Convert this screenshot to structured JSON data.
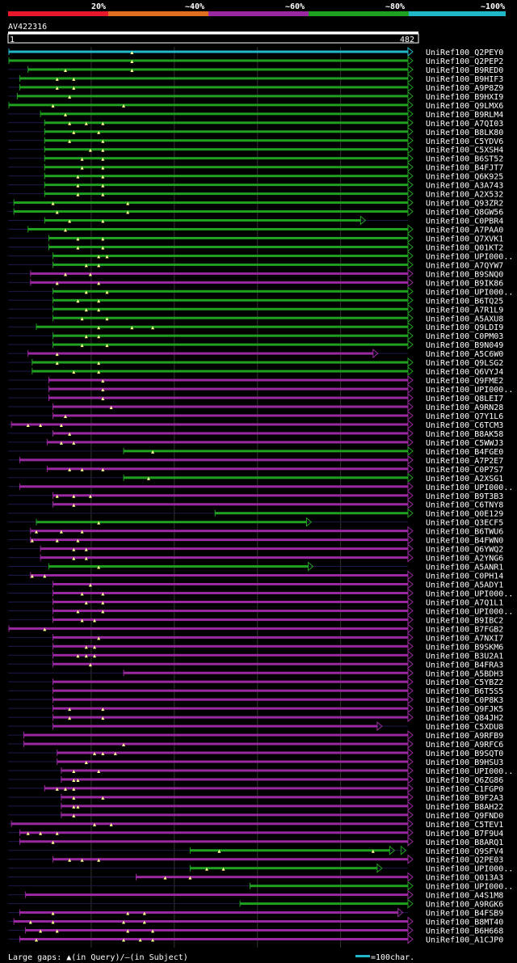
{
  "legend": {
    "labels": [
      "20%",
      "~40%",
      "~60%",
      "~80%",
      "~100%"
    ],
    "colors": [
      "#e8182c",
      "#e07020",
      "#9a28a0",
      "#20a020",
      "#20b8c8"
    ]
  },
  "query": {
    "id": "AV422316",
    "start": "1",
    "end": "482",
    "length": 482
  },
  "footer": {
    "text": "Large gaps: ▲(in Query)/–(in Subject)",
    "scale_label": "=100char."
  },
  "hits": [
    {
      "label": "UniRef100_Q2PEY0",
      "s": 2,
      "e": 482,
      "c": "cyan",
      "g": [
        150
      ],
      "arrow": true
    },
    {
      "label": "UniRef100_Q2PEP2",
      "s": 2,
      "e": 482,
      "c": "green",
      "g": [
        150
      ],
      "arrow": true
    },
    {
      "label": "UniRef100_B9RED0",
      "s": 25,
      "e": 482,
      "c": "green",
      "g": [
        70,
        150
      ],
      "arrow": true
    },
    {
      "label": "UniRef100_B9HIF3",
      "s": 15,
      "e": 482,
      "c": "green",
      "g": [
        60,
        80
      ],
      "arrow": true
    },
    {
      "label": "UniRef100_A9P8Z9",
      "s": 15,
      "e": 482,
      "c": "green",
      "g": [
        60,
        80
      ],
      "arrow": true
    },
    {
      "label": "UniRef100_B9HXI9",
      "s": 12,
      "e": 482,
      "c": "green",
      "g": [
        75
      ],
      "arrow": true
    },
    {
      "label": "UniRef100_Q9LMX6",
      "s": 2,
      "e": 482,
      "c": "green",
      "g": [
        55,
        140
      ],
      "arrow": true
    },
    {
      "label": "UniRef100_B9RLM4",
      "s": 40,
      "e": 482,
      "c": "green",
      "g": [
        70
      ],
      "arrow": true
    },
    {
      "label": "UniRef100_A7QI03",
      "s": 45,
      "e": 482,
      "c": "green",
      "g": [
        75,
        95,
        115
      ],
      "arrow": true
    },
    {
      "label": "UniRef100_B8LK80",
      "s": 45,
      "e": 482,
      "c": "green",
      "g": [
        80,
        110
      ],
      "arrow": true
    },
    {
      "label": "UniRef100_C5YDV6",
      "s": 45,
      "e": 482,
      "c": "green",
      "g": [
        75,
        115
      ],
      "arrow": true
    },
    {
      "label": "UniRef100_C5XSH4",
      "s": 45,
      "e": 482,
      "c": "green",
      "g": [
        100,
        115
      ],
      "arrow": true
    },
    {
      "label": "UniRef100_B6ST52",
      "s": 45,
      "e": 482,
      "c": "green",
      "g": [
        90,
        115
      ],
      "arrow": true
    },
    {
      "label": "UniRef100_B4FJT7",
      "s": 45,
      "e": 482,
      "c": "green",
      "g": [
        90,
        115
      ],
      "arrow": true
    },
    {
      "label": "UniRef100_Q6K925",
      "s": 45,
      "e": 482,
      "c": "green",
      "g": [
        85,
        115
      ],
      "arrow": true
    },
    {
      "label": "UniRef100_A3A743",
      "s": 45,
      "e": 482,
      "c": "green",
      "g": [
        85,
        115
      ],
      "arrow": true
    },
    {
      "label": "UniRef100_A2X532",
      "s": 45,
      "e": 482,
      "c": "green",
      "g": [
        85,
        115
      ],
      "arrow": true
    },
    {
      "label": "UniRef100_Q93ZR2",
      "s": 8,
      "e": 482,
      "c": "green",
      "g": [
        55,
        145
      ],
      "arrow": true
    },
    {
      "label": "UniRef100_Q8GW56",
      "s": 8,
      "e": 482,
      "c": "green",
      "g": [
        60,
        145
      ],
      "arrow": true
    },
    {
      "label": "UniRef100_C0PBR4",
      "s": 45,
      "e": 425,
      "c": "green",
      "g": [
        75,
        115
      ],
      "arrow": true
    },
    {
      "label": "UniRef100_A7PAA0",
      "s": 25,
      "e": 482,
      "c": "green",
      "g": [
        70
      ],
      "arrow": true
    },
    {
      "label": "UniRef100_Q7XVK1",
      "s": 50,
      "e": 482,
      "c": "green",
      "g": [
        85,
        115
      ],
      "arrow": true
    },
    {
      "label": "UniRef100_Q01KT2",
      "s": 50,
      "e": 482,
      "c": "green",
      "g": [
        85,
        115
      ],
      "arrow": true
    },
    {
      "label": "UniRef100_UPI000..",
      "s": 55,
      "e": 482,
      "c": "green",
      "g": [
        110,
        120
      ],
      "arrow": true
    },
    {
      "label": "UniRef100_A7QYW7",
      "s": 55,
      "e": 482,
      "c": "green",
      "g": [
        95,
        110
      ],
      "arrow": true
    },
    {
      "label": "UniRef100_B9SNQ0",
      "s": 28,
      "e": 482,
      "c": "magenta",
      "g": [
        70,
        100
      ],
      "arrow": true
    },
    {
      "label": "UniRef100_B9IK86",
      "s": 28,
      "e": 482,
      "c": "magenta",
      "g": [
        60,
        110
      ],
      "arrow": true
    },
    {
      "label": "UniRef100_UPI000..",
      "s": 55,
      "e": 482,
      "c": "green",
      "g": [
        95,
        120
      ],
      "arrow": true
    },
    {
      "label": "UniRef100_B6TQ25",
      "s": 55,
      "e": 482,
      "c": "green",
      "g": [
        85,
        110
      ],
      "arrow": true
    },
    {
      "label": "UniRef100_A7R1L9",
      "s": 55,
      "e": 482,
      "c": "green",
      "g": [
        95,
        110
      ],
      "arrow": true
    },
    {
      "label": "UniRef100_A5AXU8",
      "s": 55,
      "e": 482,
      "c": "green",
      "g": [
        90,
        120
      ],
      "arrow": true
    },
    {
      "label": "UniRef100_Q9LDI9",
      "s": 35,
      "e": 482,
      "c": "green",
      "g": [
        110,
        150,
        175
      ],
      "arrow": true
    },
    {
      "label": "UniRef100_C0PM03",
      "s": 55,
      "e": 482,
      "c": "green",
      "g": [
        95,
        110
      ],
      "arrow": true
    },
    {
      "label": "UniRef100_B9N049",
      "s": 55,
      "e": 482,
      "c": "green",
      "g": [
        90,
        120
      ],
      "arrow": true
    },
    {
      "label": "UniRef100_A5C6W0",
      "s": 25,
      "e": 440,
      "c": "magenta",
      "g": [
        60
      ],
      "arrow": true
    },
    {
      "label": "UniRef100_Q9LSG2",
      "s": 30,
      "e": 482,
      "c": "green",
      "g": [
        60,
        110
      ],
      "arrow": true
    },
    {
      "label": "UniRef100_Q6VYJ4",
      "s": 30,
      "e": 482,
      "c": "green",
      "g": [
        80,
        110
      ],
      "arrow": true
    },
    {
      "label": "UniRef100_Q9FME2",
      "s": 50,
      "e": 482,
      "c": "magenta",
      "g": [
        115
      ],
      "arrow": true
    },
    {
      "label": "UniRef100_UPI000..",
      "s": 50,
      "e": 482,
      "c": "magenta",
      "g": [
        115
      ],
      "arrow": true
    },
    {
      "label": "UniRef100_Q8LEI7",
      "s": 50,
      "e": 482,
      "c": "magenta",
      "g": [
        115
      ],
      "arrow": true
    },
    {
      "label": "UniRef100_A9RN28",
      "s": 55,
      "e": 482,
      "c": "magenta",
      "g": [
        125
      ],
      "arrow": true
    },
    {
      "label": "UniRef100_Q7Y1L6",
      "s": 55,
      "e": 482,
      "c": "magenta",
      "g": [
        70
      ],
      "arrow": true
    },
    {
      "label": "UniRef100_C6TCM3",
      "s": 5,
      "e": 482,
      "c": "magenta",
      "g": [
        25,
        40,
        65
      ],
      "arrow": true
    },
    {
      "label": "UniRef100_B8AK58",
      "s": 55,
      "e": 482,
      "c": "magenta",
      "g": [
        75
      ],
      "arrow": true
    },
    {
      "label": "UniRef100_C5WWJ3",
      "s": 48,
      "e": 482,
      "c": "magenta",
      "g": [
        65,
        80
      ],
      "arrow": true
    },
    {
      "label": "UniRef100_B4FGE0",
      "s": 140,
      "e": 482,
      "c": "green",
      "g": [
        175
      ],
      "arrow": true
    },
    {
      "label": "UniRef100_A7P2E7",
      "s": 15,
      "e": 482,
      "c": "magenta",
      "g": [],
      "arrow": true
    },
    {
      "label": "UniRef100_C0P7S7",
      "s": 48,
      "e": 482,
      "c": "magenta",
      "g": [
        75,
        90,
        115
      ],
      "arrow": true
    },
    {
      "label": "UniRef100_A2XSG1",
      "s": 140,
      "e": 482,
      "c": "green",
      "g": [
        170
      ],
      "arrow": true
    },
    {
      "label": "UniRef100_UPI000..",
      "s": 15,
      "e": 482,
      "c": "magenta",
      "g": [],
      "arrow": true
    },
    {
      "label": "UniRef100_B9T3B3",
      "s": 55,
      "e": 482,
      "c": "magenta",
      "g": [
        60,
        80,
        100
      ],
      "arrow": true
    },
    {
      "label": "UniRef100_C6TNY8",
      "s": 55,
      "e": 482,
      "c": "magenta",
      "g": [
        80
      ],
      "arrow": true
    },
    {
      "label": "UniRef100_Q0E129",
      "s": 250,
      "e": 482,
      "c": "green",
      "g": [],
      "arrow": true
    },
    {
      "label": "UniRef100_Q3ECF5",
      "s": 35,
      "e": 360,
      "c": "green",
      "g": [
        110
      ],
      "arrow": true
    },
    {
      "label": "UniRef100_B6TWU6",
      "s": 28,
      "e": 482,
      "c": "magenta",
      "g": [
        35,
        65,
        90
      ],
      "arrow": true
    },
    {
      "label": "UniRef100_B4FWN0",
      "s": 28,
      "e": 482,
      "c": "magenta",
      "g": [
        30,
        60,
        85
      ],
      "arrow": true
    },
    {
      "label": "UniRef100_Q6YWQ2",
      "s": 40,
      "e": 482,
      "c": "magenta",
      "g": [
        80,
        95
      ],
      "arrow": true
    },
    {
      "label": "UniRef100_A2YNG6",
      "s": 40,
      "e": 482,
      "c": "magenta",
      "g": [
        80,
        95
      ],
      "arrow": true
    },
    {
      "label": "UniRef100_A5ANR1",
      "s": 50,
      "e": 362,
      "c": "green",
      "g": [
        110
      ],
      "arrow": true
    },
    {
      "label": "UniRef100_C0PH14",
      "s": 28,
      "e": 482,
      "c": "magenta",
      "g": [
        30,
        45
      ],
      "arrow": true
    },
    {
      "label": "UniRef100_A5ADY1",
      "s": 55,
      "e": 482,
      "c": "magenta",
      "g": [
        100
      ],
      "arrow": true
    },
    {
      "label": "UniRef100_UPI000..",
      "s": 55,
      "e": 482,
      "c": "magenta",
      "g": [
        90,
        115
      ],
      "arrow": true
    },
    {
      "label": "UniRef100_A7Q1L1",
      "s": 55,
      "e": 482,
      "c": "magenta",
      "g": [
        95,
        115
      ],
      "arrow": true
    },
    {
      "label": "UniRef100_UPI000..",
      "s": 55,
      "e": 482,
      "c": "magenta",
      "g": [
        85,
        115
      ],
      "arrow": true
    },
    {
      "label": "UniRef100_B9IBC2",
      "s": 55,
      "e": 482,
      "c": "magenta",
      "g": [
        90,
        105
      ],
      "arrow": true
    },
    {
      "label": "UniRef100_B7FGB2",
      "s": 2,
      "e": 482,
      "c": "magenta",
      "g": [
        45
      ],
      "arrow": true
    },
    {
      "label": "UniRef100_A7NXI7",
      "s": 55,
      "e": 482,
      "c": "magenta",
      "g": [
        110
      ],
      "arrow": true
    },
    {
      "label": "UniRef100_B9SKM6",
      "s": 55,
      "e": 482,
      "c": "magenta",
      "g": [
        95,
        105
      ],
      "arrow": true
    },
    {
      "label": "UniRef100_B3U2A1",
      "s": 55,
      "e": 482,
      "c": "magenta",
      "g": [
        85,
        95,
        105
      ],
      "arrow": true
    },
    {
      "label": "UniRef100_B4FRA3",
      "s": 55,
      "e": 482,
      "c": "magenta",
      "g": [
        100
      ],
      "arrow": true
    },
    {
      "label": "UniRef100_A5BDH3",
      "s": 140,
      "e": 482,
      "c": "magenta",
      "g": [],
      "arrow": true
    },
    {
      "label": "UniRef100_C5YBZ2",
      "s": 55,
      "e": 482,
      "c": "magenta",
      "g": [],
      "arrow": true
    },
    {
      "label": "UniRef100_B6T5S5",
      "s": 55,
      "e": 482,
      "c": "magenta",
      "g": [],
      "arrow": true
    },
    {
      "label": "UniRef100_C0P8K3",
      "s": 55,
      "e": 482,
      "c": "magenta",
      "g": [],
      "arrow": true
    },
    {
      "label": "UniRef100_Q9FJK5",
      "s": 55,
      "e": 482,
      "c": "magenta",
      "g": [
        75,
        115
      ],
      "arrow": true
    },
    {
      "label": "UniRef100_Q84JH2",
      "s": 55,
      "e": 482,
      "c": "magenta",
      "g": [
        75,
        115
      ],
      "arrow": true
    },
    {
      "label": "UniRef100_C5XDU8",
      "s": 55,
      "e": 445,
      "c": "magenta",
      "g": [],
      "arrow": true
    },
    {
      "label": "UniRef100_A9RFB9",
      "s": 20,
      "e": 482,
      "c": "magenta",
      "g": [],
      "arrow": true
    },
    {
      "label": "UniRef100_A9RFC6",
      "s": 20,
      "e": 482,
      "c": "magenta",
      "g": [
        140
      ],
      "arrow": true
    },
    {
      "label": "UniRef100_B9SQT0",
      "s": 60,
      "e": 482,
      "c": "magenta",
      "g": [
        105,
        115,
        130
      ],
      "arrow": true
    },
    {
      "label": "UniRef100_B9HSU3",
      "s": 60,
      "e": 482,
      "c": "magenta",
      "g": [
        95
      ],
      "arrow": true
    },
    {
      "label": "UniRef100_UPI000..",
      "s": 65,
      "e": 482,
      "c": "magenta",
      "g": [
        80,
        110
      ],
      "arrow": true
    },
    {
      "label": "UniRef100_Q6ZG86",
      "s": 65,
      "e": 482,
      "c": "magenta",
      "g": [
        80,
        85
      ],
      "arrow": true
    },
    {
      "label": "UniRef100_C1FGP0",
      "s": 45,
      "e": 482,
      "c": "magenta",
      "g": [
        60,
        70,
        80
      ],
      "arrow": true
    },
    {
      "label": "UniRef100_B9F2A3",
      "s": 65,
      "e": 482,
      "c": "magenta",
      "g": [
        80,
        115
      ],
      "arrow": true
    },
    {
      "label": "UniRef100_B8AH22",
      "s": 65,
      "e": 482,
      "c": "magenta",
      "g": [
        80,
        85
      ],
      "arrow": true
    },
    {
      "label": "UniRef100_Q9FND0",
      "s": 65,
      "e": 482,
      "c": "magenta",
      "g": [
        80
      ],
      "arrow": true
    },
    {
      "label": "UniRef100_C5TEV1",
      "s": 5,
      "e": 482,
      "c": "magenta",
      "g": [
        105,
        125
      ],
      "arrow": true
    },
    {
      "label": "UniRef100_B7F9U4",
      "s": 15,
      "e": 482,
      "c": "magenta",
      "g": [
        25,
        40,
        60
      ],
      "arrow": true
    },
    {
      "label": "UniRef100_B8ARQ1",
      "s": 15,
      "e": 482,
      "c": "magenta",
      "g": [
        55
      ],
      "arrow": true
    },
    {
      "label": "UniRef100_Q9SFV4",
      "s": 220,
      "e": 460,
      "c": "green",
      "g": [
        255,
        440
      ],
      "arrow": true,
      "extra": 460
    },
    {
      "label": "UniRef100_Q2PE03",
      "s": 55,
      "e": 482,
      "c": "magenta",
      "g": [
        75,
        90,
        110
      ],
      "arrow": true
    },
    {
      "label": "UniRef100_UPI000..",
      "s": 220,
      "e": 445,
      "c": "green",
      "g": [
        240,
        260
      ],
      "arrow": true
    },
    {
      "label": "UniRef100_Q013A3",
      "s": 155,
      "e": 482,
      "c": "magenta",
      "g": [
        190,
        220
      ],
      "arrow": true
    },
    {
      "label": "UniRef100_UPI000..",
      "s": 292,
      "e": 482,
      "c": "green",
      "g": [],
      "arrow": true
    },
    {
      "label": "UniRef100_A4S1M8",
      "s": 22,
      "e": 482,
      "c": "magenta",
      "g": [],
      "arrow": true
    },
    {
      "label": "UniRef100_A9RGK6",
      "s": 280,
      "e": 482,
      "c": "green",
      "g": [],
      "arrow": true
    },
    {
      "label": "UniRef100_B4FSB9",
      "s": 15,
      "e": 470,
      "c": "magenta",
      "g": [
        55,
        145,
        165
      ],
      "arrow": true
    },
    {
      "label": "UniRef100_B8MT40",
      "s": 8,
      "e": 482,
      "c": "magenta",
      "g": [
        28,
        55,
        140,
        165
      ],
      "arrow": true
    },
    {
      "label": "UniRef100_B6H668",
      "s": 22,
      "e": 482,
      "c": "magenta",
      "g": [
        40,
        60,
        145,
        175
      ],
      "arrow": true
    },
    {
      "label": "UniRef100_A1CJP0",
      "s": 15,
      "e": 482,
      "c": "magenta",
      "g": [
        35,
        140,
        160,
        175
      ],
      "arrow": true
    }
  ]
}
